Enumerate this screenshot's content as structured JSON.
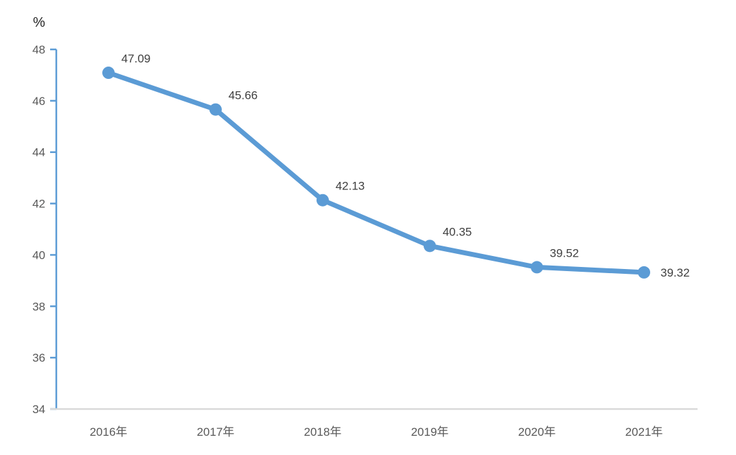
{
  "chart_data": {
    "type": "line",
    "title": "",
    "xlabel": "",
    "ylabel": "%",
    "unit_label": "%",
    "categories": [
      "2016年",
      "2017年",
      "2018年",
      "2019年",
      "2020年",
      "2021年"
    ],
    "series": [
      {
        "name": "percentage",
        "values": [
          47.09,
          45.66,
          42.13,
          40.35,
          39.52,
          39.32
        ],
        "data_labels": [
          "47.09",
          "45.66",
          "42.13",
          "40.35",
          "39.52",
          "39.32"
        ]
      }
    ],
    "y_ticks": [
      34,
      36,
      38,
      40,
      42,
      44,
      46,
      48
    ],
    "ylim": [
      34,
      48
    ],
    "grid": false,
    "legend": false,
    "marker": "circle",
    "colors": {
      "line": "#5B9BD5",
      "marker": "#5B9BD5",
      "y_axis": "#5B9BD5",
      "x_axis": "#D9D9D9",
      "tick_text": "#595959",
      "label_text": "#404040"
    }
  }
}
